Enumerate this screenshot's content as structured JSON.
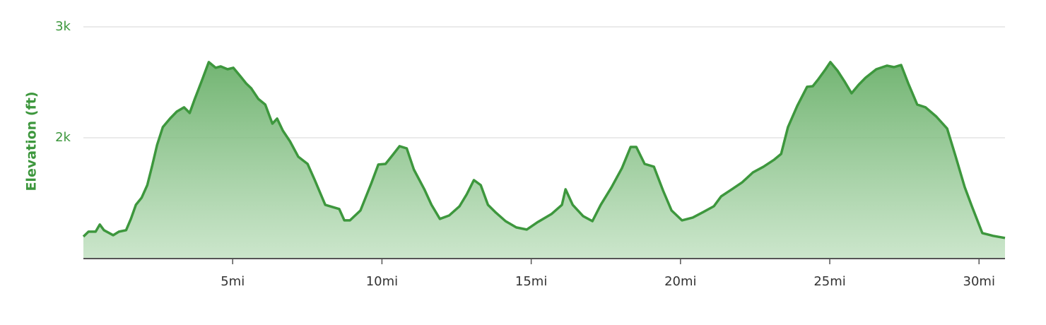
{
  "chart_data": {
    "type": "area",
    "y_axis_label": "Elevation (ft)",
    "x": [
      0,
      0.17,
      0.41,
      0.55,
      0.69,
      1.0,
      1.19,
      1.43,
      1.59,
      1.76,
      1.95,
      2.14,
      2.3,
      2.47,
      2.66,
      2.9,
      3.13,
      3.37,
      3.56,
      3.73,
      3.96,
      4.2,
      4.43,
      4.6,
      4.83,
      5.02,
      5.26,
      5.45,
      5.62,
      5.86,
      6.09,
      6.33,
      6.49,
      6.68,
      6.92,
      7.2,
      7.51,
      7.75,
      8.1,
      8.34,
      8.57,
      8.74,
      8.93,
      9.28,
      9.64,
      9.88,
      10.12,
      10.35,
      10.59,
      10.83,
      11.07,
      11.42,
      11.66,
      11.94,
      12.25,
      12.6,
      12.84,
      13.08,
      13.31,
      13.55,
      13.79,
      14.14,
      14.5,
      14.85,
      15.2,
      15.68,
      16.03,
      16.15,
      16.39,
      16.74,
      17.05,
      17.33,
      17.69,
      18.04,
      18.33,
      18.52,
      18.8,
      19.11,
      19.42,
      19.7,
      20.05,
      20.41,
      20.77,
      21.12,
      21.36,
      21.72,
      22.07,
      22.43,
      22.78,
      23.14,
      23.37,
      23.6,
      23.91,
      24.24,
      24.43,
      24.62,
      24.86,
      25.02,
      25.26,
      25.49,
      25.73,
      25.97,
      26.2,
      26.56,
      26.92,
      27.15,
      27.39,
      27.63,
      27.93,
      28.21,
      28.57,
      28.93,
      29.22,
      29.52,
      29.76,
      30.11,
      30.47,
      30.87
    ],
    "values": [
      1108,
      1153,
      1153,
      1217,
      1166,
      1121,
      1153,
      1166,
      1268,
      1395,
      1459,
      1573,
      1745,
      1936,
      2096,
      2172,
      2236,
      2274,
      2223,
      2350,
      2510,
      2682,
      2631,
      2643,
      2618,
      2631,
      2554,
      2490,
      2446,
      2350,
      2299,
      2127,
      2172,
      2064,
      1968,
      1828,
      1764,
      1618,
      1395,
      1376,
      1357,
      1255,
      1255,
      1344,
      1586,
      1758,
      1764,
      1841,
      1924,
      1904,
      1713,
      1535,
      1395,
      1268,
      1299,
      1382,
      1490,
      1618,
      1573,
      1395,
      1331,
      1248,
      1191,
      1172,
      1236,
      1312,
      1395,
      1535,
      1395,
      1293,
      1248,
      1395,
      1554,
      1726,
      1917,
      1917,
      1764,
      1739,
      1522,
      1344,
      1255,
      1280,
      1331,
      1382,
      1471,
      1535,
      1599,
      1688,
      1739,
      1803,
      1854,
      2096,
      2287,
      2459,
      2465,
      2529,
      2618,
      2682,
      2605,
      2510,
      2401,
      2478,
      2541,
      2618,
      2650,
      2637,
      2656,
      2490,
      2299,
      2274,
      2191,
      2083,
      1828,
      1554,
      1382,
      1140,
      1115,
      1096
    ],
    "color": "#3d973d",
    "xlim": [
      0,
      30.87
    ],
    "ylim": [
      910,
      3000
    ],
    "xticks": [
      {
        "value": 5,
        "label": "5mi"
      },
      {
        "value": 10,
        "label": "10mi"
      },
      {
        "value": 15,
        "label": "15mi"
      },
      {
        "value": 20,
        "label": "20mi"
      },
      {
        "value": 25,
        "label": "25mi"
      },
      {
        "value": 30,
        "label": "30mi"
      }
    ],
    "yticks": [
      {
        "value": 2000,
        "label": "2k"
      },
      {
        "value": 3000,
        "label": "3k"
      }
    ],
    "grid": true
  }
}
